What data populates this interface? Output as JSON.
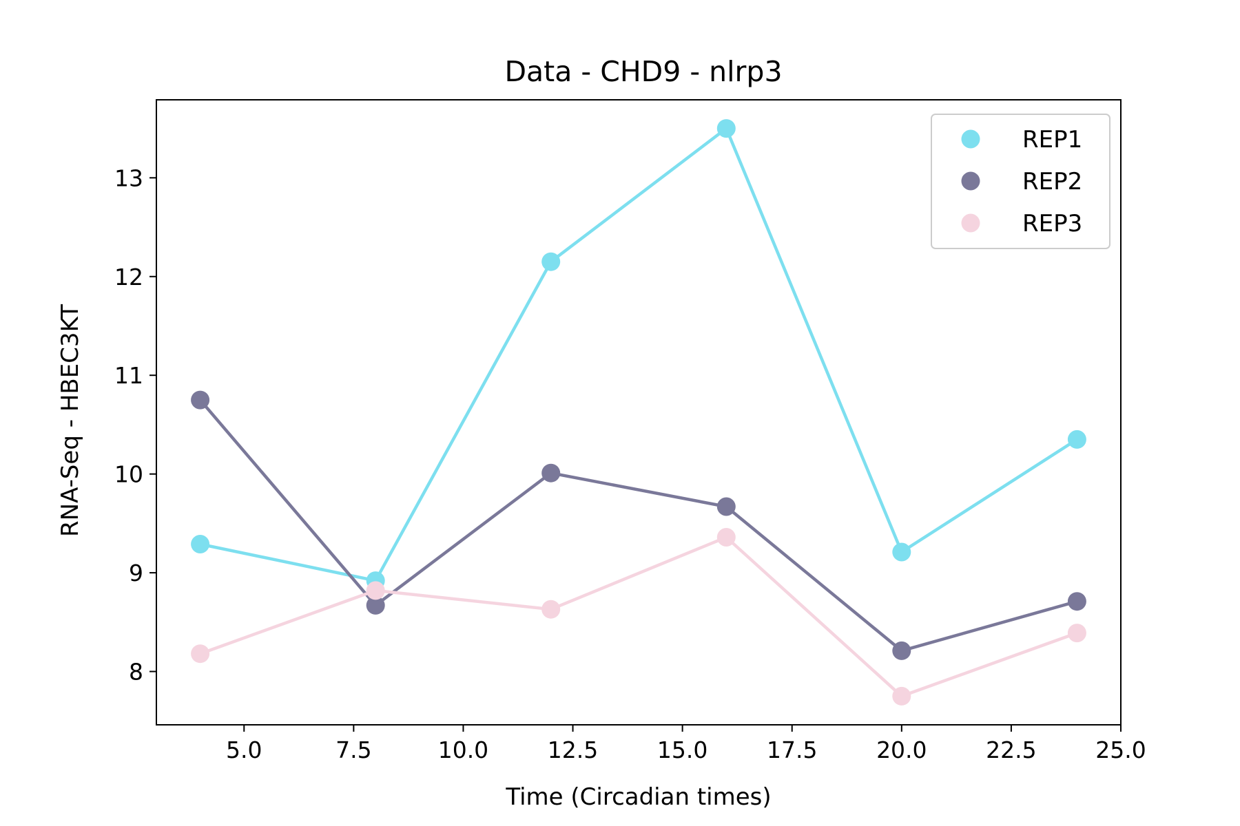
{
  "chart_data": {
    "type": "line",
    "title": "Data - CHD9 - nlrp3",
    "xlabel": "Time (Circadian times)",
    "ylabel": "RNA-Seq - HBEC3KT",
    "xlim": [
      3.0,
      25.0
    ],
    "ylim": [
      7.46,
      13.79
    ],
    "xticks": [
      5.0,
      7.5,
      10.0,
      12.5,
      15.0,
      17.5,
      20.0,
      22.5,
      25.0
    ],
    "xtick_labels": [
      "5.0",
      "7.5",
      "10.0",
      "12.5",
      "15.0",
      "17.5",
      "20.0",
      "22.5",
      "25.0"
    ],
    "yticks": [
      8,
      9,
      10,
      11,
      12,
      13
    ],
    "ytick_labels": [
      "8",
      "9",
      "10",
      "11",
      "12",
      "13"
    ],
    "grid": false,
    "legend_position": "top-right",
    "x": [
      4,
      8,
      12,
      16,
      20,
      24
    ],
    "series": [
      {
        "name": "REP1",
        "color": "#7ddfef",
        "values": [
          9.29,
          8.92,
          12.15,
          13.5,
          9.21,
          10.35
        ]
      },
      {
        "name": "REP2",
        "color": "#7a7899",
        "values": [
          10.75,
          8.67,
          10.01,
          9.67,
          8.21,
          8.71
        ]
      },
      {
        "name": "REP3",
        "color": "#f5d4df",
        "values": [
          8.18,
          8.82,
          8.63,
          9.36,
          7.75,
          8.39
        ]
      }
    ]
  }
}
